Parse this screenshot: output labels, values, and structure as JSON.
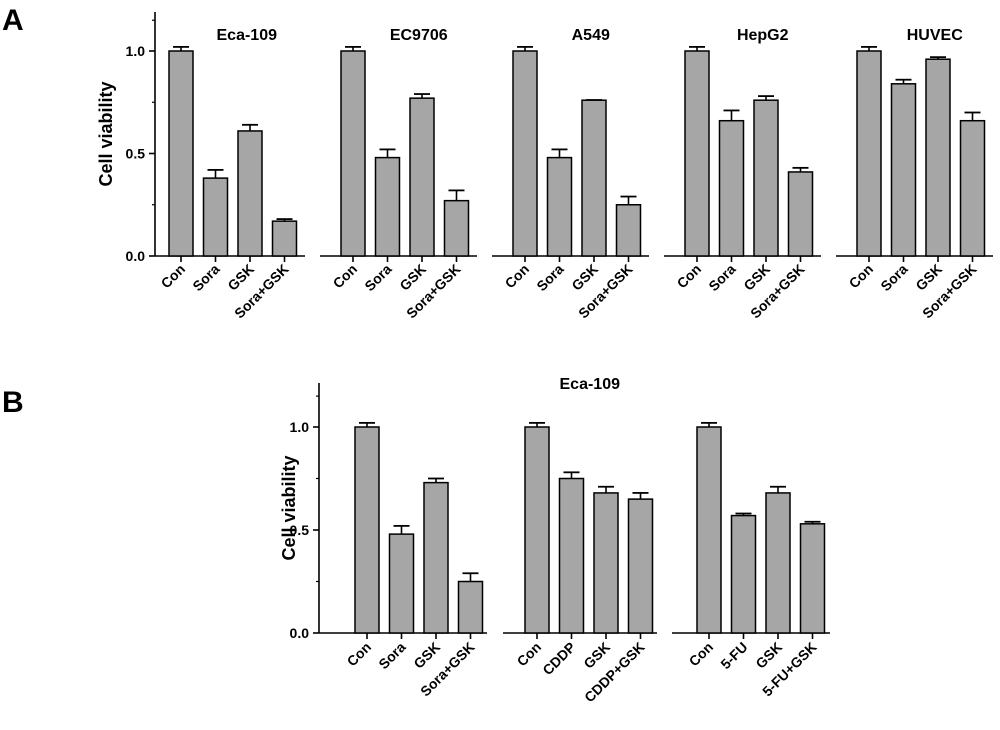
{
  "chart_data": [
    {
      "panel": "A",
      "type": "bar",
      "ylabel": "Cell viability",
      "ylim": [
        0,
        1.2
      ],
      "yticks": [
        "0.0",
        "0.5",
        "1.0"
      ],
      "groups": [
        {
          "title": "Eca-109",
          "categories": [
            "Con",
            "Sora",
            "GSK",
            "Sora+GSK"
          ],
          "values": [
            1.0,
            0.38,
            0.61,
            0.17
          ],
          "errors": [
            0.02,
            0.04,
            0.03,
            0.01
          ]
        },
        {
          "title": "EC9706",
          "categories": [
            "Con",
            "Sora",
            "GSK",
            "Sora+GSK"
          ],
          "values": [
            1.0,
            0.48,
            0.77,
            0.27
          ],
          "errors": [
            0.02,
            0.04,
            0.02,
            0.05
          ]
        },
        {
          "title": "A549",
          "categories": [
            "Con",
            "Sora",
            "GSK",
            "Sora+GSK"
          ],
          "values": [
            1.0,
            0.48,
            0.76,
            0.25
          ],
          "errors": [
            0.02,
            0.04,
            0.0,
            0.04
          ]
        },
        {
          "title": "HepG2",
          "categories": [
            "Con",
            "Sora",
            "GSK",
            "Sora+GSK"
          ],
          "values": [
            1.0,
            0.66,
            0.76,
            0.41
          ],
          "errors": [
            0.02,
            0.05,
            0.02,
            0.02
          ]
        },
        {
          "title": "HUVEC",
          "categories": [
            "Con",
            "Sora",
            "GSK",
            "Sora+GSK"
          ],
          "values": [
            1.0,
            0.84,
            0.96,
            0.66
          ],
          "errors": [
            0.02,
            0.02,
            0.01,
            0.04
          ]
        }
      ]
    },
    {
      "panel": "B",
      "type": "bar",
      "title": "Eca-109",
      "ylabel": "Cell viability",
      "ylim": [
        0,
        1.2
      ],
      "yticks": [
        "0.0",
        "0.5",
        "1.0"
      ],
      "groups": [
        {
          "title": "",
          "categories": [
            "Con",
            "Sora",
            "GSK",
            "Sora+GSK"
          ],
          "values": [
            1.0,
            0.48,
            0.73,
            0.25
          ],
          "errors": [
            0.02,
            0.04,
            0.02,
            0.04
          ]
        },
        {
          "title": "",
          "categories": [
            "Con",
            "CDDP",
            "GSK",
            "CDDP+GSK"
          ],
          "values": [
            1.0,
            0.75,
            0.68,
            0.65
          ],
          "errors": [
            0.02,
            0.03,
            0.03,
            0.03
          ]
        },
        {
          "title": "",
          "categories": [
            "Con",
            "5-FU",
            "GSK",
            "5-FU+GSK"
          ],
          "values": [
            1.0,
            0.57,
            0.68,
            0.53
          ],
          "errors": [
            0.02,
            0.01,
            0.03,
            0.01
          ]
        }
      ]
    }
  ]
}
